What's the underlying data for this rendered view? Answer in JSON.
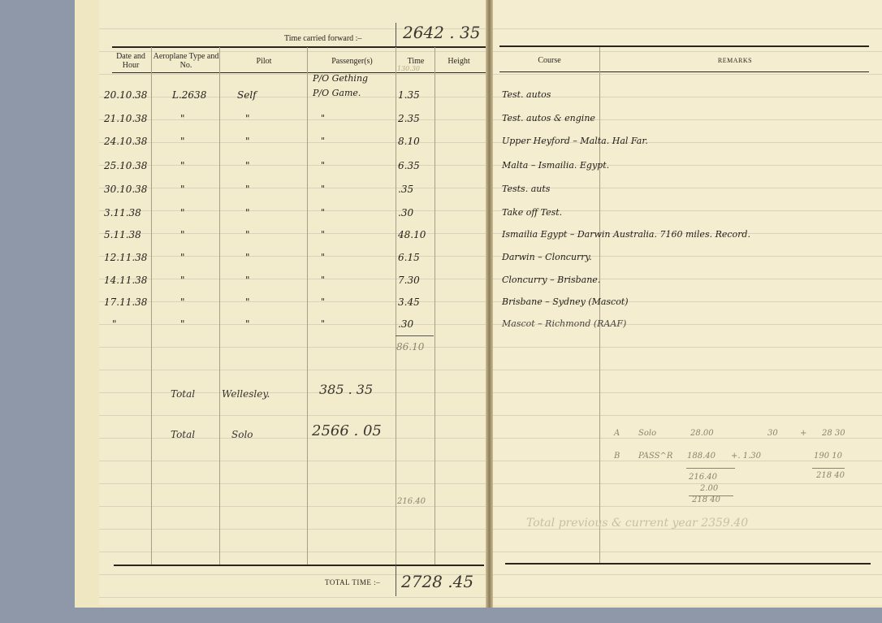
{
  "left_page": {
    "carried_forward_label": "Time carried forward :–",
    "carried_forward_value": "2642 . 35",
    "headers": [
      "Date and Hour",
      "Aeroplane Type and No.",
      "Pilot",
      "Passenger(s)",
      "Time",
      "Height"
    ],
    "time_pencil_note": "130.30",
    "entries": [
      {
        "date": "20.10.38",
        "aircraft": "L.2638",
        "pilot": "Self",
        "passenger": "P/O Gething / P/O Game.",
        "time": "1.35"
      },
      {
        "date": "21.10.38",
        "aircraft": "\"",
        "pilot": "\"",
        "passenger": "\"",
        "time": "2.35"
      },
      {
        "date": "24.10.38",
        "aircraft": "\"",
        "pilot": "\"",
        "passenger": "\"",
        "time": "8.10"
      },
      {
        "date": "25.10.38",
        "aircraft": "\"",
        "pilot": "\"",
        "passenger": "\"",
        "time": "6.35"
      },
      {
        "date": "30.10.38",
        "aircraft": "\"",
        "pilot": "\"",
        "passenger": "\"",
        "time": ".35"
      },
      {
        "date": "3.11.38",
        "aircraft": "\"",
        "pilot": "\"",
        "passenger": "\"",
        "time": ".30"
      },
      {
        "date": "5.11.38",
        "aircraft": "\"",
        "pilot": "\"",
        "passenger": "\"",
        "time": "48.10"
      },
      {
        "date": "12.11.38",
        "aircraft": "\"",
        "pilot": "\"",
        "passenger": "\"",
        "time": "6.15"
      },
      {
        "date": "14.11.38",
        "aircraft": "\"",
        "pilot": "\"",
        "passenger": "\"",
        "time": "7.30"
      },
      {
        "date": "17.11.38",
        "aircraft": "\"",
        "pilot": "\"",
        "passenger": "\"",
        "time": "3.45"
      },
      {
        "date": "\"",
        "aircraft": "\"",
        "pilot": "\"",
        "passenger": "\"",
        "time": ".30"
      }
    ],
    "subtotal": "86.10",
    "total_wellesley_label": "Total",
    "total_wellesley_type": "Wellesley.",
    "total_wellesley_value": "385 . 35",
    "total_solo_label": "Total",
    "total_solo_type": "Solo",
    "total_solo_value": "2566 . 05",
    "pencil_time": "216.40",
    "total_time_label": "Total Time :–",
    "total_time_value": "2728 .45"
  },
  "right_page": {
    "headers": [
      "Course",
      "Remarks"
    ],
    "courses": [
      "Test. autos",
      "Test. autos & engine",
      "Upper Heyford – Malta. Hal Far.",
      "Malta – Ismailia. Egypt.",
      "Tests. auts",
      "Take off Test.",
      "Ismailia Egypt – Darwin Australia. 7160 miles. Record.",
      "Darwin – Cloncurry.",
      "Cloncurry – Brisbane.",
      "Brisbane – Sydney (Mascot)",
      "Mascot – Richmond (RAAF)"
    ],
    "pencil_calc": {
      "row_a": [
        "A",
        "Solo",
        "28.00",
        "30",
        "+",
        "28 30"
      ],
      "row_b": [
        "B",
        "PASS^R",
        "188.40",
        "+. 1.30",
        "190 10"
      ],
      "sum1": "216.40",
      "add": "2.00",
      "sum2": "218 40",
      "sum3": "218 40"
    },
    "total_note": "Total previous & current year 2359.40"
  }
}
